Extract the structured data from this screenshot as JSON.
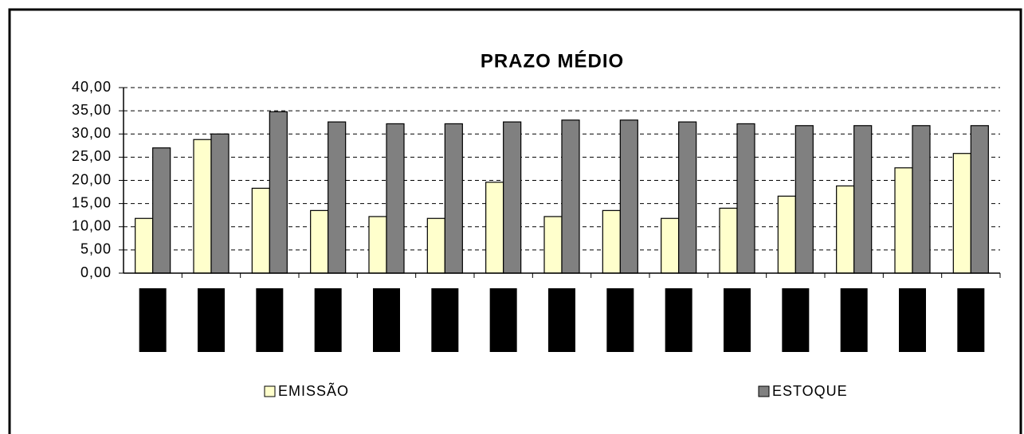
{
  "chart_data": {
    "type": "bar",
    "title": "PRAZO MÉDIO",
    "categories": [
      null,
      null,
      null,
      null,
      null,
      null,
      null,
      null,
      null,
      null,
      null,
      null,
      null,
      null,
      null
    ],
    "series": [
      {
        "name": "EMISSÃO",
        "color": "#ffffcc",
        "values": [
          11.8,
          28.8,
          18.3,
          13.5,
          12.2,
          11.8,
          19.6,
          12.2,
          13.5,
          11.8,
          14.0,
          16.6,
          18.8,
          22.7,
          25.8
        ]
      },
      {
        "name": "ESTOQUE",
        "color": "#808080",
        "values": [
          27.0,
          30.0,
          34.8,
          32.6,
          32.2,
          32.2,
          32.6,
          33.0,
          33.0,
          32.6,
          32.2,
          31.8,
          31.8,
          31.8,
          31.8
        ]
      }
    ],
    "ylim": [
      0,
      40
    ],
    "yticks": [
      {
        "value": 0,
        "label": "0,00"
      },
      {
        "value": 5,
        "label": "5,00"
      },
      {
        "value": 10,
        "label": "10,00"
      },
      {
        "value": 15,
        "label": "15,00"
      },
      {
        "value": 20,
        "label": "20,00"
      },
      {
        "value": 25,
        "label": "25,00"
      },
      {
        "value": 30,
        "label": "30,00"
      },
      {
        "value": 35,
        "label": "35,00"
      },
      {
        "value": 40,
        "label": "40,00"
      }
    ],
    "grid": true,
    "legend": "bottom"
  }
}
